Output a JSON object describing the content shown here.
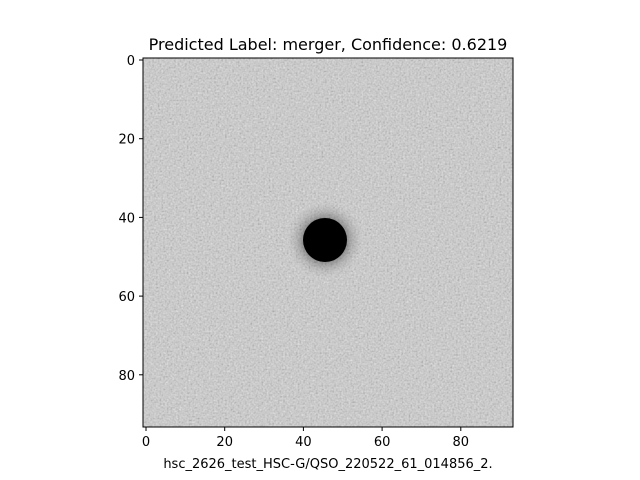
{
  "figure": {
    "title": "Predicted Label: merger, Confidence: 0.6219",
    "xlabel": "hsc_2626_test_HSC-G/QSO_220522_61_014856_2.",
    "x_ticks": [
      "0",
      "20",
      "40",
      "60",
      "80"
    ],
    "y_ticks": [
      "0",
      "20",
      "40",
      "60",
      "80"
    ]
  },
  "image_panel": {
    "colormap": "gray_r",
    "size": [
      94,
      94
    ],
    "source": {
      "x": 45.5,
      "y": 46.5,
      "radius": 5.5
    },
    "axis_extent": {
      "x": [
        -0.5,
        93.5
      ],
      "y": [
        93.5,
        -0.5
      ]
    }
  }
}
